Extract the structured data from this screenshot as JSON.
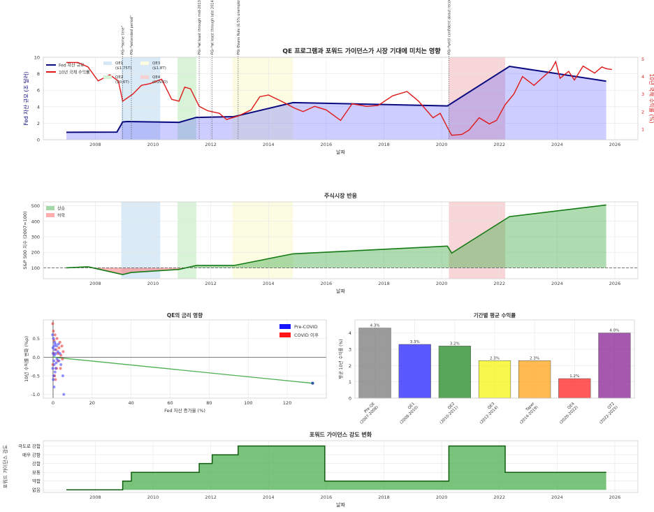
{
  "chart_data": [
    {
      "id": "p1",
      "type": "line",
      "title": "QE 프로그램과 포워드 가이던스가 시장 기대에 미치는 영향",
      "xlabel": "날짜",
      "ylabel": "Fed 자산 규모 (조 달러)",
      "ylabel_right": "10년 국채 수익률 (%)",
      "xlim": [
        2006.2,
        2026.8
      ],
      "ylim": [
        0,
        10
      ],
      "ylim_right": [
        0.4,
        5.1
      ],
      "xticks": [
        "2008",
        "2010",
        "2012",
        "2014",
        "2016",
        "2018",
        "2020",
        "2022",
        "2024",
        "2026"
      ],
      "yticks": [
        "0",
        "2",
        "4",
        "6",
        "8",
        "10"
      ],
      "yticks_right": [
        "1",
        "2",
        "3",
        "4",
        "5"
      ],
      "legend": [
        "Fed 자산 규모",
        "10년 국채 수익률",
        "QE1 ($1.75T)",
        "QE2 ($0.6T)",
        "QE3 ($1.8T)",
        "QE4 (COVID)"
      ],
      "shaded_periods": [
        {
          "name": "QE1",
          "start": 2008.9,
          "end": 2010.25,
          "color": "#d6e8f5"
        },
        {
          "name": "QE2",
          "start": 2010.85,
          "end": 2011.5,
          "color": "#d5f2d5"
        },
        {
          "name": "QE3",
          "start": 2012.75,
          "end": 2014.85,
          "color": "#fcfce0"
        },
        {
          "name": "QE4",
          "start": 2020.25,
          "end": 2022.2,
          "color": "#f7d0d2"
        }
      ],
      "guidance_events": [
        {
          "x": 2008.95,
          "label": "FG: \"some time\""
        },
        {
          "x": 2009.25,
          "label": "FG: \"extended period\""
        },
        {
          "x": 2011.6,
          "label": "FG: \"at least through mid-2013\""
        },
        {
          "x": 2012.05,
          "label": "FG: \"at least through late 2014\""
        },
        {
          "x": 2012.95,
          "label": "FG: Evans Rule (6.5% unemployment)"
        },
        {
          "x": 2020.25,
          "label": "FG: \"until confident about recovery\""
        }
      ],
      "fed_assets": [
        [
          2007.0,
          0.9
        ],
        [
          2008.75,
          0.92
        ],
        [
          2008.95,
          2.15
        ],
        [
          2009.1,
          2.2
        ],
        [
          2010.9,
          2.1
        ],
        [
          2011.5,
          2.7
        ],
        [
          2012.8,
          2.8
        ],
        [
          2014.85,
          4.5
        ],
        [
          2020.2,
          4.1
        ],
        [
          2022.35,
          8.9
        ],
        [
          2025.7,
          7.1
        ]
      ],
      "treasury_yield": [
        [
          2007.0,
          4.8
        ],
        [
          2007.4,
          4.8
        ],
        [
          2007.75,
          4.55
        ],
        [
          2008.1,
          3.75
        ],
        [
          2008.5,
          4.1
        ],
        [
          2008.8,
          3.75
        ],
        [
          2008.95,
          2.6
        ],
        [
          2009.3,
          3.0
        ],
        [
          2009.6,
          3.5
        ],
        [
          2009.9,
          3.6
        ],
        [
          2010.3,
          3.85
        ],
        [
          2010.65,
          2.7
        ],
        [
          2010.9,
          2.6
        ],
        [
          2011.1,
          3.4
        ],
        [
          2011.3,
          3.3
        ],
        [
          2011.6,
          2.3
        ],
        [
          2011.9,
          2.05
        ],
        [
          2012.3,
          1.9
        ],
        [
          2012.55,
          1.55
        ],
        [
          2012.95,
          1.75
        ],
        [
          2013.4,
          2.1
        ],
        [
          2013.7,
          2.85
        ],
        [
          2014.0,
          2.95
        ],
        [
          2014.5,
          2.55
        ],
        [
          2014.9,
          2.2
        ],
        [
          2015.2,
          2.0
        ],
        [
          2015.6,
          2.3
        ],
        [
          2016.0,
          2.1
        ],
        [
          2016.5,
          1.5
        ],
        [
          2016.9,
          2.45
        ],
        [
          2017.4,
          2.3
        ],
        [
          2017.8,
          2.35
        ],
        [
          2018.3,
          2.9
        ],
        [
          2018.8,
          3.15
        ],
        [
          2019.2,
          2.6
        ],
        [
          2019.7,
          1.65
        ],
        [
          2019.95,
          1.9
        ],
        [
          2020.2,
          1.1
        ],
        [
          2020.35,
          0.65
        ],
        [
          2020.7,
          0.7
        ],
        [
          2020.95,
          0.95
        ],
        [
          2021.3,
          1.65
        ],
        [
          2021.65,
          1.3
        ],
        [
          2021.9,
          1.5
        ],
        [
          2022.2,
          2.4
        ],
        [
          2022.5,
          3.0
        ],
        [
          2022.8,
          4.0
        ],
        [
          2023.2,
          3.5
        ],
        [
          2023.8,
          4.4
        ],
        [
          2023.95,
          4.85
        ],
        [
          2024.1,
          3.9
        ],
        [
          2024.4,
          4.3
        ],
        [
          2024.6,
          3.8
        ],
        [
          2024.9,
          4.6
        ],
        [
          2025.3,
          4.2
        ],
        [
          2025.55,
          4.55
        ],
        [
          2025.7,
          4.45
        ],
        [
          2025.9,
          4.4
        ]
      ]
    },
    {
      "id": "p2",
      "type": "area",
      "title": "주식시장 반응",
      "xlabel": "날짜",
      "ylabel": "S&P 500 지수 (2007=100)",
      "xlim": [
        2006.2,
        2026.8
      ],
      "ylim": [
        30,
        525
      ],
      "xticks": [
        "2008",
        "2010",
        "2012",
        "2014",
        "2016",
        "2018",
        "2020",
        "2022",
        "2024",
        "2026"
      ],
      "yticks": [
        "100",
        "200",
        "300",
        "400",
        "500"
      ],
      "baseline": 100,
      "legend": [
        "상승",
        "하락"
      ],
      "series": [
        [
          2007.0,
          100
        ],
        [
          2007.75,
          107
        ],
        [
          2008.95,
          57
        ],
        [
          2009.25,
          70
        ],
        [
          2010.9,
          90
        ],
        [
          2011.5,
          115
        ],
        [
          2012.8,
          115
        ],
        [
          2014.85,
          190
        ],
        [
          2020.2,
          240
        ],
        [
          2020.35,
          195
        ],
        [
          2022.35,
          430
        ],
        [
          2025.7,
          505
        ]
      ]
    },
    {
      "id": "p3",
      "type": "scatter",
      "title": "QE의 금리 영향",
      "xlabel": "Fed 자산 증가율 (%)",
      "ylabel": "10년 수익률 변화 (%p)",
      "xlim": [
        -5,
        140
      ],
      "ylim": [
        -1.1,
        1.0
      ],
      "xticks": [
        "0",
        "20",
        "40",
        "60",
        "80",
        "100",
        "120"
      ],
      "yticks": [
        "-1.0",
        "-0.5",
        "0.0",
        "0.5"
      ],
      "legend": [
        "Pre-COVID",
        "COVID 이후"
      ],
      "trend": [
        [
          0,
          0
        ],
        [
          133,
          -0.7
        ]
      ],
      "points_pre": [
        [
          0.2,
          0.5
        ],
        [
          0.5,
          0.3
        ],
        [
          0.8,
          0.4
        ],
        [
          -0.3,
          0.6
        ],
        [
          0,
          0.1
        ],
        [
          0.4,
          -0.1
        ],
        [
          -0.2,
          -0.3
        ],
        [
          0.6,
          -0.2
        ],
        [
          0.9,
          0.2
        ],
        [
          1.0,
          -0.4
        ],
        [
          1.4,
          0.1
        ],
        [
          1.2,
          0.35
        ],
        [
          -0.1,
          0.25
        ],
        [
          0.3,
          -0.5
        ],
        [
          0.7,
          0.05
        ],
        [
          1.6,
          -0.15
        ],
        [
          0.1,
          -0.6
        ],
        [
          1.8,
          0.3
        ],
        [
          2.0,
          -0.05
        ],
        [
          2.5,
          0.15
        ],
        [
          3.0,
          -0.1
        ],
        [
          0.5,
          -0.8
        ],
        [
          1.3,
          -0.3
        ],
        [
          2.8,
          0.35
        ],
        [
          3.5,
          0.1
        ],
        [
          4.0,
          -0.2
        ],
        [
          5.0,
          -0.5
        ],
        [
          5.5,
          -1.0
        ],
        [
          133,
          -0.7
        ]
      ],
      "points_covid": [
        [
          -0.2,
          0.9
        ],
        [
          0.2,
          0.7
        ],
        [
          0.5,
          0.45
        ],
        [
          1.0,
          0.6
        ],
        [
          1.5,
          0.2
        ],
        [
          2.0,
          0.5
        ],
        [
          2.5,
          -0.1
        ],
        [
          3.0,
          0.25
        ],
        [
          3.5,
          0.4
        ],
        [
          4.0,
          0.05
        ],
        [
          -0.1,
          -0.2
        ],
        [
          0.8,
          -0.5
        ],
        [
          1.8,
          -0.3
        ],
        [
          2.6,
          0.1
        ],
        [
          3.8,
          -0.3
        ],
        [
          4.5,
          0.3
        ],
        [
          1.2,
          -0.6
        ],
        [
          0.4,
          0.1
        ],
        [
          5.2,
          0.15
        ],
        [
          4.8,
          -0.05
        ]
      ]
    },
    {
      "id": "p4",
      "type": "bar",
      "title": "기간별 평균 수익률",
      "ylabel": "평균 10년 수익률 (%)",
      "ylim": [
        0,
        4.8
      ],
      "yticks": [
        "0",
        "1",
        "2",
        "3",
        "4"
      ],
      "categories": [
        "Pre-QE\n(2007-2008)",
        "QE1\n(2008-2010)",
        "QE2\n(2010-2011)",
        "QE3\n(2012-2014)",
        "Taper\n(2014-2019)",
        "QE4\n(2020-2022)",
        "QT2\n(2022-2025)"
      ],
      "values": [
        4.3,
        3.3,
        3.2,
        2.3,
        2.3,
        1.2,
        4.0
      ],
      "labels": [
        "4.3%",
        "3.3%",
        "3.2%",
        "2.3%",
        "2.3%",
        "1.2%",
        "4.0%"
      ],
      "colors": [
        "#808080",
        "#2b2bff",
        "#2a8f2a",
        "#f5f51a",
        "#ffa722",
        "#ff2b2b",
        "#8e2a99"
      ]
    },
    {
      "id": "p5",
      "type": "area",
      "title": "포워드 가이던스 강도 변화",
      "xlabel": "날짜",
      "ylabel": "포워드 가이던스 강도",
      "xlim": [
        2006.2,
        2026.8
      ],
      "ylim": [
        -0.3,
        5.6
      ],
      "xticks": [
        "2008",
        "2010",
        "2012",
        "2014",
        "2016",
        "2018",
        "2020",
        "2022",
        "2024",
        "2026"
      ],
      "levels": [
        "없음",
        "약함",
        "보통",
        "강함",
        "매우 강함",
        "극도로 강함"
      ],
      "steps": [
        [
          2007.0,
          0
        ],
        [
          2008.95,
          0
        ],
        [
          2008.95,
          1
        ],
        [
          2009.25,
          1
        ],
        [
          2009.25,
          2
        ],
        [
          2011.6,
          2
        ],
        [
          2011.6,
          3
        ],
        [
          2012.05,
          3
        ],
        [
          2012.05,
          4
        ],
        [
          2012.95,
          4
        ],
        [
          2012.95,
          5
        ],
        [
          2015.95,
          5
        ],
        [
          2015.95,
          1
        ],
        [
          2020.25,
          1
        ],
        [
          2020.25,
          5
        ],
        [
          2022.2,
          5
        ],
        [
          2022.2,
          2
        ],
        [
          2025.7,
          2
        ]
      ]
    }
  ]
}
